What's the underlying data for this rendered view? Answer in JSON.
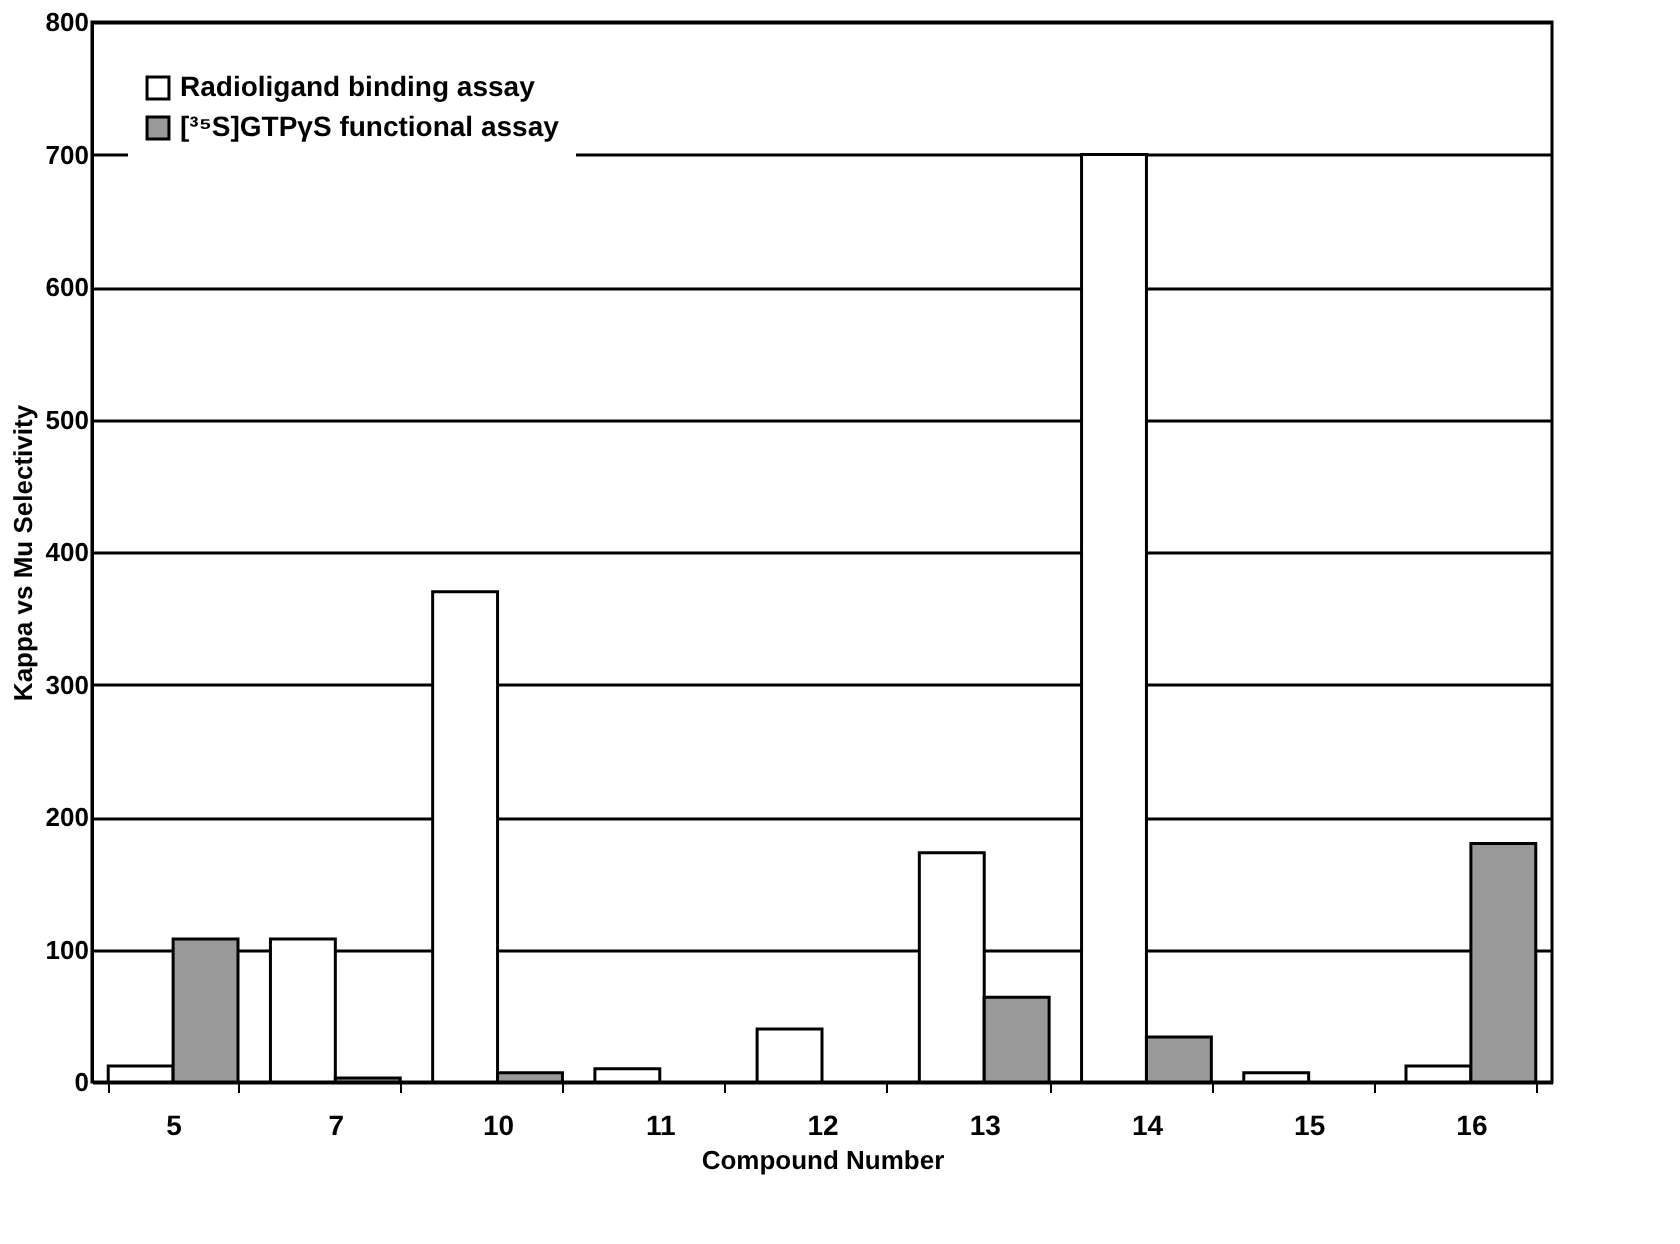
{
  "chart_data": {
    "type": "bar",
    "xlabel": "Compound Number",
    "ylabel": "Kappa vs Mu Selectivity",
    "categories": [
      "5",
      "7",
      "10",
      "11",
      "12",
      "13",
      "14",
      "15",
      "16"
    ],
    "series": [
      {
        "name": "Radioligand binding assay",
        "color": "#ffffff",
        "values": [
          12,
          108,
          370,
          10,
          40,
          173,
          700,
          7,
          12
        ]
      },
      {
        "name": "[³⁵S]GTPγS functional assay",
        "color": "#999999",
        "values": [
          108,
          3,
          7,
          null,
          null,
          64,
          34,
          null,
          180
        ]
      }
    ],
    "ylim": [
      0,
      800
    ],
    "yticks": [
      0,
      100,
      200,
      300,
      400,
      500,
      600,
      700,
      800
    ],
    "grid": "y",
    "legend": "top left"
  }
}
